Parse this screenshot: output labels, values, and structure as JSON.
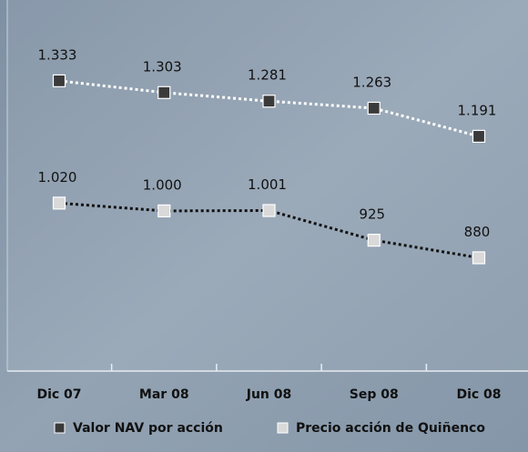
{
  "chart_data": {
    "type": "line",
    "categories": [
      "Dic 07",
      "Mar 08",
      "Jun 08",
      "Sep 08",
      "Dic 08"
    ],
    "series": [
      {
        "name": "Valor NAV por acción",
        "color": "#3a3a3a",
        "line_color": "#ffffff",
        "values": [
          1333,
          1303,
          1281,
          1263,
          1191
        ],
        "value_labels": [
          "1.333",
          "1.303",
          "1.281",
          "1.263",
          "1.191"
        ]
      },
      {
        "name": "Precio acción de Quiñenco",
        "color": "#d9d9d9",
        "line_color": "#111111",
        "values": [
          1020,
          1000,
          1001,
          925,
          880
        ],
        "value_labels": [
          "1.020",
          "1.000",
          "1.001",
          "925",
          "880"
        ]
      }
    ],
    "ylim": [
      590,
      1540
    ]
  }
}
